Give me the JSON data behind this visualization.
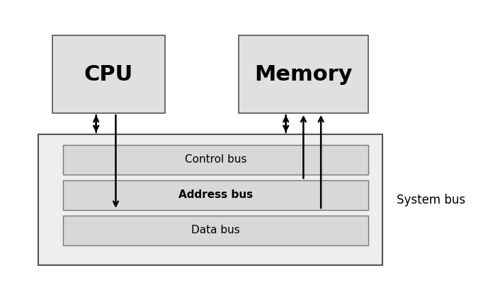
{
  "bg_color": "#ffffff",
  "box_fill": "#e0e0e0",
  "box_edge": "#555555",
  "bus_fill": "#d8d8d8",
  "bus_edge": "#777777",
  "outer_bus_fill": "#eeeeee",
  "outer_bus_edge": "#555555",
  "cpu_label": "CPU",
  "memory_label": "Memory",
  "bus_labels": [
    "Control bus",
    "Address bus",
    "Data bus"
  ],
  "system_bus_label": "System bus",
  "arrow_color": "#000000",
  "cpu_fontsize": 22,
  "memory_fontsize": 22,
  "bus_fontsize": 11,
  "system_bus_fontsize": 12,
  "arrow_lw": 1.8,
  "arrow_mutation": 12
}
